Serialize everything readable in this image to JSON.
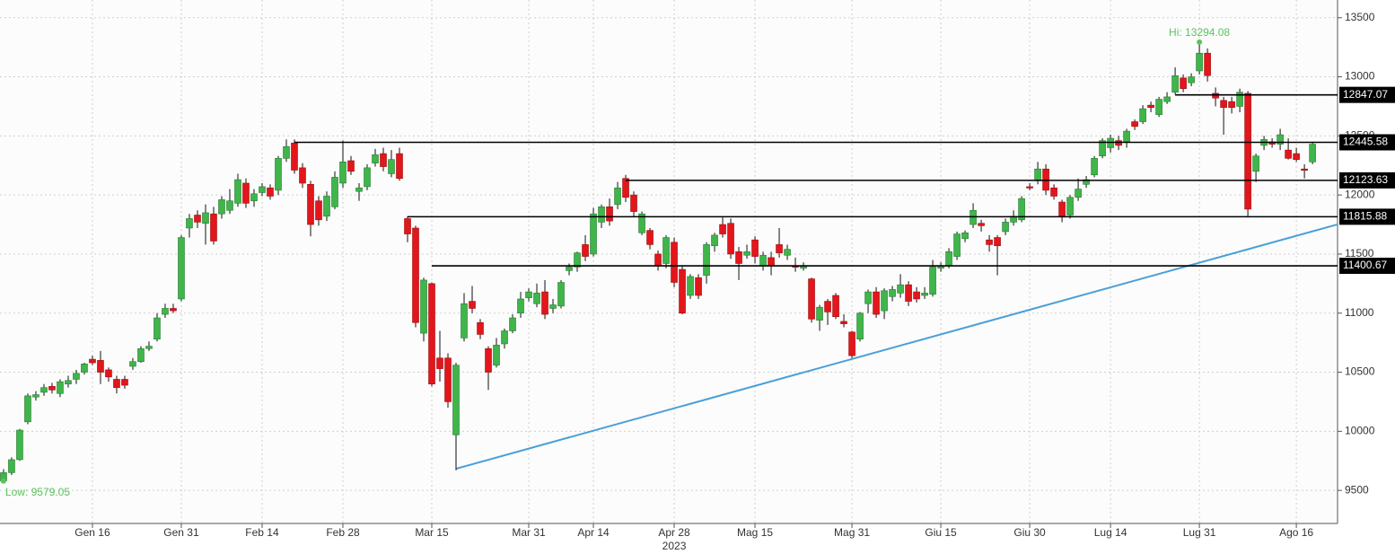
{
  "chart_data": {
    "type": "candlestick",
    "xlim": [
      -0.44,
      165.1
    ],
    "ylim": [
      9220,
      13650
    ],
    "yticks": [
      9500,
      10000,
      10500,
      11000,
      11500,
      12000,
      12500,
      13000,
      13500
    ],
    "xticks": [
      {
        "value": 11,
        "label": "Gen 16"
      },
      {
        "value": 22,
        "label": "Gen 31"
      },
      {
        "value": 32,
        "label": "Feb 14"
      },
      {
        "value": 42,
        "label": "Feb 28"
      },
      {
        "value": 53,
        "label": "Mar 15"
      },
      {
        "value": 65,
        "label": "Mar 31"
      },
      {
        "value": 73,
        "label": "Apr 14"
      },
      {
        "value": 83,
        "label": "Apr 28"
      },
      {
        "value": 93,
        "label": "Mag 15"
      },
      {
        "value": 105,
        "label": "Mag 31"
      },
      {
        "value": 116,
        "label": "Giu 15"
      },
      {
        "value": 127,
        "label": "Giu 30"
      },
      {
        "value": 137,
        "label": "Lug 14"
      },
      {
        "value": 148,
        "label": "Lug 31"
      },
      {
        "value": 160,
        "label": "Ago 16"
      }
    ],
    "year_label": "2023",
    "year_label_x": 83,
    "grid": true,
    "up_color": "#3fb54a",
    "down_color": "#e3161b",
    "candles": [
      [
        9580,
        9680,
        9579,
        9650
      ],
      [
        9650,
        9780,
        9630,
        9760
      ],
      [
        9760,
        10020,
        9750,
        10010
      ],
      [
        10080,
        10320,
        10060,
        10300
      ],
      [
        10290,
        10340,
        10260,
        10310
      ],
      [
        10330,
        10400,
        10300,
        10370
      ],
      [
        10380,
        10410,
        10320,
        10350
      ],
      [
        10320,
        10440,
        10290,
        10420
      ],
      [
        10400,
        10470,
        10370,
        10430
      ],
      [
        10440,
        10520,
        10400,
        10490
      ],
      [
        10500,
        10580,
        10480,
        10570
      ],
      [
        10610,
        10640,
        10560,
        10580
      ],
      [
        10600,
        10680,
        10400,
        10500
      ],
      [
        10520,
        10540,
        10420,
        10460
      ],
      [
        10440,
        10470,
        10320,
        10370
      ],
      [
        10440,
        10470,
        10360,
        10390
      ],
      [
        10550,
        10620,
        10520,
        10590
      ],
      [
        10590,
        10720,
        10580,
        10700
      ],
      [
        10700,
        10760,
        10680,
        10720
      ],
      [
        10780,
        11000,
        10760,
        10960
      ],
      [
        10990,
        11080,
        10960,
        11040
      ],
      [
        11040,
        11080,
        11000,
        11020
      ],
      [
        11120,
        11660,
        11100,
        11640
      ],
      [
        11720,
        11840,
        11640,
        11800
      ],
      [
        11830,
        11870,
        11720,
        11770
      ],
      [
        11760,
        11920,
        11580,
        11850
      ],
      [
        11840,
        11900,
        11580,
        11610
      ],
      [
        11840,
        11990,
        11800,
        11960
      ],
      [
        11870,
        12050,
        11840,
        11950
      ],
      [
        11930,
        12180,
        11900,
        12130
      ],
      [
        12100,
        12140,
        11890,
        11930
      ],
      [
        11950,
        12050,
        11900,
        12010
      ],
      [
        12020,
        12100,
        11990,
        12070
      ],
      [
        12060,
        12090,
        11960,
        11990
      ],
      [
        12040,
        12330,
        12000,
        12310
      ],
      [
        12310,
        12470,
        12280,
        12410
      ],
      [
        12440,
        12470,
        12180,
        12210
      ],
      [
        12230,
        12270,
        12060,
        12100
      ],
      [
        12090,
        12120,
        11650,
        11750
      ],
      [
        11950,
        11990,
        11740,
        11790
      ],
      [
        11820,
        12030,
        11780,
        11990
      ],
      [
        11900,
        12200,
        11880,
        12150
      ],
      [
        12100,
        12460,
        12060,
        12280
      ],
      [
        12290,
        12330,
        12170,
        12200
      ],
      [
        12030,
        12100,
        11950,
        12060
      ],
      [
        12070,
        12260,
        12040,
        12230
      ],
      [
        12270,
        12390,
        12240,
        12340
      ],
      [
        12350,
        12400,
        12200,
        12240
      ],
      [
        12180,
        12380,
        12150,
        12300
      ],
      [
        12350,
        12400,
        12120,
        12140
      ],
      [
        11800,
        11820,
        11600,
        11670
      ],
      [
        11720,
        11740,
        10880,
        10920
      ],
      [
        10830,
        11300,
        10760,
        11280
      ],
      [
        11250,
        11260,
        10380,
        10400
      ],
      [
        10620,
        10850,
        10420,
        10530
      ],
      [
        10620,
        10660,
        10200,
        10250
      ],
      [
        9970,
        10580,
        9670,
        10560
      ],
      [
        10790,
        11170,
        10760,
        11080
      ],
      [
        11100,
        11230,
        11000,
        11040
      ],
      [
        10920,
        10950,
        10780,
        10820
      ],
      [
        10700,
        10720,
        10350,
        10500
      ],
      [
        10560,
        10790,
        10540,
        10730
      ],
      [
        10740,
        10870,
        10700,
        10850
      ],
      [
        10850,
        10990,
        10830,
        10960
      ],
      [
        11000,
        11180,
        10960,
        11120
      ],
      [
        11130,
        11210,
        11100,
        11180
      ],
      [
        11080,
        11250,
        11050,
        11170
      ],
      [
        11180,
        11280,
        10950,
        10990
      ],
      [
        11040,
        11120,
        11000,
        11070
      ],
      [
        11060,
        11280,
        11040,
        11260
      ],
      [
        11360,
        11420,
        11320,
        11390
      ],
      [
        11390,
        11520,
        11350,
        11510
      ],
      [
        11580,
        11660,
        11440,
        11480
      ],
      [
        11500,
        11890,
        11480,
        11840
      ],
      [
        11770,
        11920,
        11720,
        11900
      ],
      [
        11900,
        11970,
        11740,
        11780
      ],
      [
        11920,
        12110,
        11880,
        12060
      ],
      [
        12140,
        12170,
        11940,
        11980
      ],
      [
        12000,
        12030,
        11820,
        11860
      ],
      [
        11680,
        11860,
        11660,
        11840
      ],
      [
        11700,
        11720,
        11540,
        11580
      ],
      [
        11500,
        11530,
        11360,
        11400
      ],
      [
        11420,
        11660,
        11380,
        11640
      ],
      [
        11600,
        11640,
        11220,
        11260
      ],
      [
        11370,
        11400,
        10990,
        11000
      ],
      [
        11150,
        11330,
        11120,
        11310
      ],
      [
        11300,
        11330,
        11120,
        11150
      ],
      [
        11320,
        11600,
        11250,
        11580
      ],
      [
        11570,
        11680,
        11520,
        11660
      ],
      [
        11750,
        11810,
        11640,
        11670
      ],
      [
        11760,
        11800,
        11460,
        11500
      ],
      [
        11520,
        11560,
        11280,
        11420
      ],
      [
        11490,
        11580,
        11460,
        11520
      ],
      [
        11620,
        11650,
        11420,
        11480
      ],
      [
        11400,
        11520,
        11360,
        11490
      ],
      [
        11470,
        11520,
        11320,
        11400
      ],
      [
        11580,
        11720,
        11470,
        11510
      ],
      [
        11490,
        11580,
        11450,
        11540
      ],
      [
        11400,
        11470,
        11350,
        11390
      ],
      [
        11380,
        11430,
        11360,
        11400
      ],
      [
        11290,
        11300,
        10920,
        10950
      ],
      [
        10940,
        11070,
        10850,
        11050
      ],
      [
        11100,
        11120,
        10900,
        11010
      ],
      [
        11150,
        11170,
        10950,
        10970
      ],
      [
        10930,
        10990,
        10880,
        10910
      ],
      [
        10840,
        10850,
        10620,
        10640
      ],
      [
        10780,
        11010,
        10760,
        11000
      ],
      [
        11080,
        11200,
        11000,
        11180
      ],
      [
        11180,
        11220,
        10960,
        10990
      ],
      [
        11020,
        11210,
        10950,
        11190
      ],
      [
        11140,
        11230,
        11100,
        11200
      ],
      [
        11170,
        11330,
        11130,
        11240
      ],
      [
        11240,
        11270,
        11060,
        11100
      ],
      [
        11180,
        11220,
        11090,
        11120
      ],
      [
        11150,
        11220,
        11120,
        11170
      ],
      [
        11160,
        11450,
        11140,
        11390
      ],
      [
        11380,
        11430,
        11350,
        11400
      ],
      [
        11400,
        11550,
        11380,
        11520
      ],
      [
        11480,
        11690,
        11450,
        11670
      ],
      [
        11630,
        11700,
        11600,
        11680
      ],
      [
        11750,
        11930,
        11720,
        11870
      ],
      [
        11760,
        11790,
        11690,
        11740
      ],
      [
        11620,
        11660,
        11520,
        11580
      ],
      [
        11640,
        11660,
        11320,
        11570
      ],
      [
        11690,
        11800,
        11660,
        11770
      ],
      [
        11770,
        11870,
        11740,
        11820
      ],
      [
        11790,
        11990,
        11770,
        11970
      ],
      [
        12070,
        12100,
        12040,
        12060
      ],
      [
        12120,
        12280,
        12090,
        12220
      ],
      [
        12220,
        12260,
        12000,
        12040
      ],
      [
        12060,
        12090,
        11960,
        11990
      ],
      [
        11940,
        11960,
        11770,
        11820
      ],
      [
        11830,
        12000,
        11800,
        11980
      ],
      [
        11980,
        12140,
        11950,
        12050
      ],
      [
        12090,
        12160,
        12060,
        12130
      ],
      [
        12170,
        12330,
        12150,
        12310
      ],
      [
        12330,
        12480,
        12310,
        12460
      ],
      [
        12400,
        12510,
        12360,
        12480
      ],
      [
        12460,
        12500,
        12380,
        12420
      ],
      [
        12450,
        12560,
        12400,
        12540
      ],
      [
        12620,
        12640,
        12550,
        12580
      ],
      [
        12620,
        12760,
        12600,
        12730
      ],
      [
        12760,
        12790,
        12700,
        12740
      ],
      [
        12680,
        12830,
        12660,
        12810
      ],
      [
        12790,
        12870,
        12770,
        12830
      ],
      [
        12870,
        13080,
        12850,
        13010
      ],
      [
        12990,
        13020,
        12870,
        12900
      ],
      [
        12950,
        13030,
        12920,
        13000
      ],
      [
        13050,
        13294.08,
        13020,
        13200
      ],
      [
        13200,
        13240,
        12960,
        13010
      ],
      [
        12860,
        12910,
        12750,
        12820
      ],
      [
        12800,
        12830,
        12510,
        12740
      ],
      [
        12790,
        12830,
        12690,
        12740
      ],
      [
        12750,
        12900,
        12700,
        12870
      ],
      [
        12860,
        12880,
        11820,
        11880
      ],
      [
        12200,
        12350,
        12110,
        12330
      ],
      [
        12420,
        12500,
        12380,
        12470
      ],
      [
        12450,
        12480,
        12400,
        12430
      ],
      [
        12430,
        12560,
        12380,
        12510
      ],
      [
        12380,
        12480,
        12300,
        12310
      ],
      [
        12350,
        12400,
        12280,
        12300
      ],
      [
        12220,
        12260,
        12140,
        12210
      ],
      [
        12280,
        12450,
        12260,
        12430
      ]
    ],
    "levels": [
      {
        "value": 12847.07,
        "from": 145
      },
      {
        "value": 12445.58,
        "from": 36
      },
      {
        "value": 12123.63,
        "from": 77
      },
      {
        "value": 11815.88,
        "from": 50
      },
      {
        "value": 11400.67,
        "from": 53
      }
    ],
    "trendline": {
      "x": [
        56,
        165.1
      ],
      "y": [
        9683,
        11751
      ],
      "color": "#4a9fd8"
    },
    "annotations": [
      {
        "text": "Hi: 13294.08",
        "x": 148,
        "y": 13294.08,
        "color": "#5cc35c"
      },
      {
        "text": "Low: 9579.05",
        "x": 0,
        "y": 9579.05,
        "color": "#5cc35c"
      }
    ]
  }
}
